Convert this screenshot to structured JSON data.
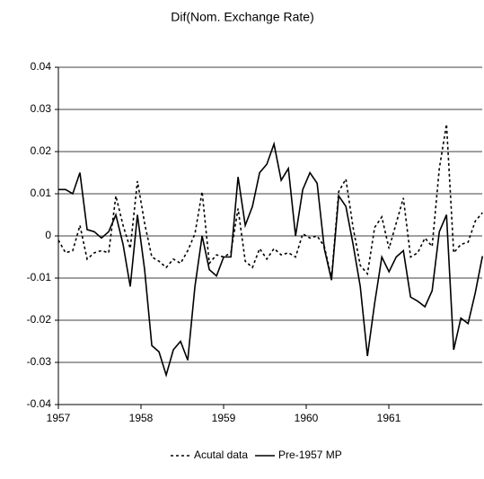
{
  "chart_data": {
    "type": "line",
    "title": "Dif(Nom. Exchange Rate)",
    "x": [
      1957,
      1957.087,
      1957.174,
      1957.261,
      1957.348,
      1957.435,
      1957.522,
      1957.609,
      1957.696,
      1957.783,
      1957.87,
      1957.957,
      1958.044,
      1958.131,
      1958.218,
      1958.305,
      1958.392,
      1958.479,
      1958.566,
      1958.653,
      1958.74,
      1958.827,
      1958.914,
      1959.001,
      1959.088,
      1959.175,
      1959.262,
      1959.349,
      1959.436,
      1959.523,
      1959.61,
      1959.697,
      1959.784,
      1959.871,
      1959.958,
      1960.045,
      1960.132,
      1960.219,
      1960.306,
      1960.393,
      1960.48,
      1960.567,
      1960.654,
      1960.741,
      1960.828,
      1960.915,
      1961.002,
      1961.089,
      1961.176,
      1961.263,
      1961.35,
      1961.437,
      1961.524,
      1961.611,
      1961.698,
      1961.785,
      1961.872,
      1961.959,
      1962.046,
      1962.133
    ],
    "series": [
      {
        "name": "Acutal data",
        "color": "#000000",
        "style": "dotted",
        "values": [
          -0.001,
          -0.004,
          -0.0035,
          0.0025,
          -0.0055,
          -0.004,
          -0.0035,
          -0.004,
          0.0095,
          0.0025,
          -0.003,
          0.013,
          0.003,
          -0.005,
          -0.006,
          -0.0075,
          -0.0055,
          -0.0065,
          -0.0035,
          0.0005,
          0.0105,
          -0.0065,
          -0.0045,
          -0.005,
          -0.004,
          0.0065,
          -0.006,
          -0.0075,
          -0.003,
          -0.0055,
          -0.003,
          -0.0045,
          -0.004,
          -0.005,
          0.0005,
          -0.0005,
          0.0,
          -0.0025,
          -0.01,
          0.0105,
          0.0135,
          0.002,
          -0.007,
          -0.009,
          0.002,
          0.0045,
          -0.003,
          0.003,
          0.009,
          -0.005,
          -0.004,
          -0.0005,
          -0.0025,
          0.016,
          0.0265,
          -0.004,
          -0.002,
          -0.0015,
          0.0035,
          0.0055
        ]
      },
      {
        "name": "Pre-1957 MP",
        "color": "#000000",
        "style": "solid",
        "values": [
          0.011,
          0.011,
          0.01,
          0.015,
          0.0015,
          0.001,
          -0.0005,
          0.001,
          0.005,
          -0.002,
          -0.012,
          0.005,
          -0.008,
          -0.026,
          -0.0275,
          -0.033,
          -0.027,
          -0.025,
          -0.0295,
          -0.012,
          0.0,
          -0.008,
          -0.0095,
          -0.005,
          -0.005,
          0.014,
          0.0025,
          0.007,
          0.015,
          0.017,
          0.0218,
          0.0132,
          0.016,
          0.0,
          0.011,
          0.015,
          0.0125,
          -0.003,
          -0.0105,
          0.0095,
          0.007,
          -0.002,
          -0.012,
          -0.0285,
          -0.016,
          -0.005,
          -0.0085,
          -0.005,
          -0.0035,
          -0.0145,
          -0.0155,
          -0.0168,
          -0.013,
          0.001,
          0.005,
          -0.027,
          -0.0195,
          -0.0208,
          -0.0135,
          -0.0048
        ]
      }
    ],
    "xlim": [
      1957,
      1962.13
    ],
    "xticks": [
      1957,
      1958,
      1959,
      1960,
      1961
    ],
    "ylim": [
      -0.04,
      0.04
    ],
    "yticks": [
      0.04,
      0.03,
      0.02,
      0.01,
      0,
      -0.01,
      -0.02,
      -0.03,
      -0.04
    ],
    "grid": true,
    "legend": "bottom"
  }
}
